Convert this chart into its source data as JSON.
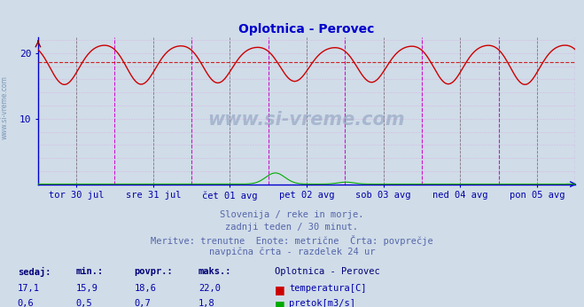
{
  "title": "Oplotnica - Perovec",
  "title_color": "#0000cc",
  "background_color": "#d0dce8",
  "plot_bg_color": "#d0dce8",
  "ylim": [
    0,
    22.5
  ],
  "yticks": [
    10,
    20
  ],
  "x_labels": [
    "tor 30 jul",
    "sre 31 jul",
    "čet 01 avg",
    "pet 02 avg",
    "sob 03 avg",
    "ned 04 avg",
    "pon 05 avg"
  ],
  "n_days": 7,
  "n_points": 336,
  "temp_min": 15.9,
  "temp_max": 22.0,
  "temp_avg": 18.6,
  "temp_color": "#cc0000",
  "flow_color": "#00aa00",
  "flow_max": 1.8,
  "grid_dot_color": "#dd99dd",
  "vline_mag_color": "#cc00cc",
  "vline_dark_color": "#555555",
  "axis_color": "#0000cc",
  "tick_label_color": "#0000aa",
  "watermark_text": "www.si-vreme.com",
  "watermark_color": "#8899bb",
  "footer_lines": [
    "Slovenija / reke in morje.",
    "zadnji teden / 30 minut.",
    "Meritve: trenutne  Enote: metrične  Črta: povprečje",
    "navpična črta - razdelek 24 ur"
  ],
  "footer_color": "#5566aa",
  "table_header": [
    "sedaj:",
    "min.:",
    "povpr.:",
    "maks.:",
    "Oplotnica - Perovec"
  ],
  "table_row1": [
    "17,1",
    "15,9",
    "18,6",
    "22,0",
    "temperatura[C]"
  ],
  "table_row2": [
    "0,6",
    "0,5",
    "0,7",
    "1,8",
    "pretok[m3/s]"
  ],
  "table_num_color": "#0000aa",
  "table_header_color": "#000077"
}
